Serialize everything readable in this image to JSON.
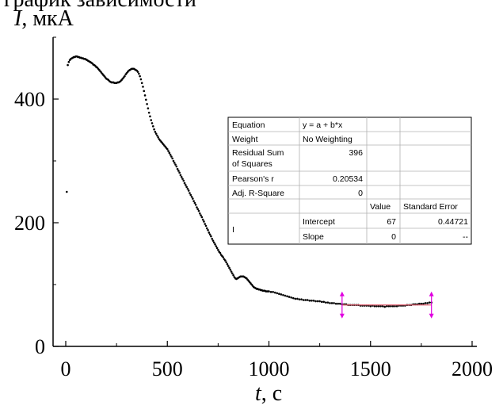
{
  "caption_fragment": "график зависимости",
  "chart_data": {
    "type": "scatter",
    "xlabel": {
      "symbol": "t",
      "unit": ", с"
    },
    "ylabel": {
      "symbol": "I",
      "unit": ", мкА"
    },
    "xlim": [
      0,
      2000
    ],
    "ylim": [
      0,
      500
    ],
    "x_ticks": [
      0,
      500,
      1000,
      1500,
      2000
    ],
    "y_ticks": [
      0,
      200,
      400
    ],
    "grid": false,
    "series": [
      {
        "color": "#000000",
        "marker": "dot",
        "points": [
          [
            5,
            250
          ],
          [
            10,
            455
          ],
          [
            15,
            460
          ],
          [
            20,
            463
          ],
          [
            25,
            465
          ],
          [
            30,
            466
          ],
          [
            35,
            467
          ],
          [
            40,
            468
          ],
          [
            45,
            468
          ],
          [
            50,
            469
          ],
          [
            55,
            469
          ],
          [
            60,
            468
          ],
          [
            65,
            468
          ],
          [
            70,
            467
          ],
          [
            75,
            467
          ],
          [
            80,
            466
          ],
          [
            85,
            466
          ],
          [
            90,
            465
          ],
          [
            95,
            465
          ],
          [
            100,
            464
          ],
          [
            105,
            463
          ],
          [
            110,
            462
          ],
          [
            115,
            461
          ],
          [
            120,
            460
          ],
          [
            125,
            459
          ],
          [
            130,
            458
          ],
          [
            135,
            456
          ],
          [
            140,
            455
          ],
          [
            145,
            454
          ],
          [
            150,
            452
          ],
          [
            155,
            451
          ],
          [
            160,
            449
          ],
          [
            165,
            447
          ],
          [
            170,
            445
          ],
          [
            175,
            443
          ],
          [
            180,
            441
          ],
          [
            185,
            439
          ],
          [
            190,
            437
          ],
          [
            195,
            435
          ],
          [
            200,
            433
          ],
          [
            205,
            432
          ],
          [
            210,
            431
          ],
          [
            215,
            429
          ],
          [
            220,
            428
          ],
          [
            225,
            427
          ],
          [
            230,
            427
          ],
          [
            235,
            427
          ],
          [
            240,
            426
          ],
          [
            245,
            426
          ],
          [
            250,
            426
          ],
          [
            255,
            427
          ],
          [
            260,
            427
          ],
          [
            265,
            428
          ],
          [
            270,
            429
          ],
          [
            275,
            431
          ],
          [
            280,
            433
          ],
          [
            285,
            435
          ],
          [
            290,
            437
          ],
          [
            295,
            440
          ],
          [
            300,
            442
          ],
          [
            305,
            444
          ],
          [
            310,
            446
          ],
          [
            315,
            447
          ],
          [
            320,
            448
          ],
          [
            325,
            449
          ],
          [
            330,
            449
          ],
          [
            335,
            449
          ],
          [
            340,
            448
          ],
          [
            345,
            447
          ],
          [
            350,
            446
          ],
          [
            355,
            444
          ],
          [
            360,
            441
          ],
          [
            365,
            437
          ],
          [
            370,
            432
          ],
          [
            375,
            426
          ],
          [
            380,
            420
          ],
          [
            385,
            413
          ],
          [
            390,
            406
          ],
          [
            395,
            399
          ],
          [
            400,
            392
          ],
          [
            405,
            385
          ],
          [
            410,
            378
          ],
          [
            415,
            372
          ],
          [
            420,
            366
          ],
          [
            425,
            361
          ],
          [
            430,
            356
          ],
          [
            435,
            351
          ],
          [
            440,
            347
          ],
          [
            445,
            344
          ],
          [
            450,
            341
          ],
          [
            455,
            338
          ],
          [
            460,
            335
          ],
          [
            465,
            333
          ],
          [
            470,
            331
          ],
          [
            475,
            329
          ],
          [
            480,
            327
          ],
          [
            485,
            325
          ],
          [
            490,
            323
          ],
          [
            495,
            321
          ],
          [
            500,
            319
          ],
          [
            505,
            316
          ],
          [
            510,
            313
          ],
          [
            515,
            310
          ],
          [
            520,
            307
          ],
          [
            525,
            304
          ],
          [
            530,
            300
          ],
          [
            535,
            297
          ],
          [
            540,
            294
          ],
          [
            545,
            291
          ],
          [
            550,
            287
          ],
          [
            555,
            284
          ],
          [
            560,
            281
          ],
          [
            565,
            277
          ],
          [
            570,
            274
          ],
          [
            575,
            271
          ],
          [
            580,
            268
          ],
          [
            585,
            264
          ],
          [
            590,
            261
          ],
          [
            595,
            258
          ],
          [
            600,
            255
          ],
          [
            605,
            252
          ],
          [
            610,
            248
          ],
          [
            615,
            245
          ],
          [
            620,
            242
          ],
          [
            625,
            239
          ],
          [
            630,
            235
          ],
          [
            635,
            232
          ],
          [
            640,
            229
          ],
          [
            645,
            225
          ],
          [
            650,
            222
          ],
          [
            655,
            219
          ],
          [
            660,
            215
          ],
          [
            665,
            212
          ],
          [
            670,
            209
          ],
          [
            675,
            205
          ],
          [
            680,
            202
          ],
          [
            685,
            198
          ],
          [
            690,
            195
          ],
          [
            695,
            191
          ],
          [
            700,
            188
          ],
          [
            705,
            184
          ],
          [
            710,
            181
          ],
          [
            715,
            178
          ],
          [
            720,
            174
          ],
          [
            725,
            171
          ],
          [
            730,
            168
          ],
          [
            735,
            165
          ],
          [
            740,
            162
          ],
          [
            745,
            159
          ],
          [
            750,
            156
          ],
          [
            755,
            153
          ],
          [
            760,
            151
          ],
          [
            765,
            148
          ],
          [
            770,
            146
          ],
          [
            775,
            144
          ],
          [
            780,
            141
          ],
          [
            785,
            139
          ],
          [
            790,
            136
          ],
          [
            795,
            133
          ],
          [
            800,
            130
          ],
          [
            805,
            127
          ],
          [
            810,
            124
          ],
          [
            815,
            121
          ],
          [
            820,
            118
          ],
          [
            825,
            115
          ],
          [
            830,
            112
          ],
          [
            835,
            110
          ],
          [
            840,
            109
          ],
          [
            845,
            110
          ],
          [
            850,
            111
          ],
          [
            855,
            112
          ],
          [
            860,
            113
          ],
          [
            865,
            113
          ],
          [
            870,
            113
          ],
          [
            875,
            113
          ],
          [
            880,
            112
          ],
          [
            885,
            111
          ],
          [
            890,
            110
          ],
          [
            895,
            108
          ],
          [
            900,
            106
          ],
          [
            905,
            104
          ],
          [
            910,
            102
          ],
          [
            915,
            100
          ],
          [
            920,
            98
          ],
          [
            925,
            96
          ],
          [
            930,
            95
          ],
          [
            935,
            94
          ],
          [
            940,
            93
          ],
          [
            945,
            93
          ],
          [
            950,
            92
          ],
          [
            955,
            92
          ],
          [
            960,
            91
          ],
          [
            965,
            91
          ],
          [
            970,
            90
          ],
          [
            975,
            90
          ],
          [
            980,
            90
          ],
          [
            985,
            89
          ],
          [
            990,
            89
          ],
          [
            995,
            89
          ],
          [
            1000,
            89
          ],
          [
            1010,
            88
          ],
          [
            1020,
            88
          ],
          [
            1030,
            87
          ],
          [
            1040,
            86
          ],
          [
            1050,
            85
          ],
          [
            1060,
            84
          ],
          [
            1070,
            83
          ],
          [
            1080,
            82
          ],
          [
            1090,
            81
          ],
          [
            1100,
            80
          ],
          [
            1110,
            79
          ],
          [
            1120,
            78
          ],
          [
            1130,
            77
          ],
          [
            1140,
            77
          ],
          [
            1150,
            76
          ],
          [
            1160,
            76
          ],
          [
            1170,
            75
          ],
          [
            1180,
            75
          ],
          [
            1190,
            75
          ],
          [
            1200,
            74
          ],
          [
            1210,
            74
          ],
          [
            1220,
            74
          ],
          [
            1230,
            73
          ],
          [
            1240,
            73
          ],
          [
            1250,
            73
          ],
          [
            1260,
            72
          ],
          [
            1270,
            72
          ],
          [
            1280,
            71
          ],
          [
            1290,
            71
          ],
          [
            1300,
            70
          ],
          [
            1310,
            70
          ],
          [
            1320,
            70
          ],
          [
            1330,
            69
          ],
          [
            1340,
            69
          ],
          [
            1350,
            69
          ],
          [
            1360,
            68
          ],
          [
            1370,
            68
          ],
          [
            1380,
            68
          ],
          [
            1390,
            67
          ],
          [
            1400,
            67
          ],
          [
            1410,
            67
          ],
          [
            1420,
            67
          ],
          [
            1430,
            67
          ],
          [
            1440,
            67
          ],
          [
            1450,
            66
          ],
          [
            1460,
            66
          ],
          [
            1470,
            66
          ],
          [
            1480,
            66
          ],
          [
            1490,
            66
          ],
          [
            1500,
            65
          ],
          [
            1510,
            66
          ],
          [
            1520,
            65
          ],
          [
            1530,
            65
          ],
          [
            1540,
            65
          ],
          [
            1550,
            65
          ],
          [
            1560,
            65
          ],
          [
            1570,
            64
          ],
          [
            1580,
            65
          ],
          [
            1590,
            65
          ],
          [
            1600,
            65
          ],
          [
            1610,
            65
          ],
          [
            1620,
            65
          ],
          [
            1630,
            65
          ],
          [
            1640,
            66
          ],
          [
            1650,
            66
          ],
          [
            1660,
            66
          ],
          [
            1670,
            66
          ],
          [
            1680,
            67
          ],
          [
            1690,
            67
          ],
          [
            1700,
            67
          ],
          [
            1710,
            68
          ],
          [
            1720,
            68
          ],
          [
            1730,
            68
          ],
          [
            1740,
            69
          ],
          [
            1750,
            69
          ],
          [
            1760,
            69
          ],
          [
            1770,
            70
          ],
          [
            1780,
            70
          ],
          [
            1790,
            71
          ],
          [
            1800,
            71
          ]
        ]
      }
    ],
    "fit_range": {
      "x": [
        1360,
        1800
      ],
      "y": 67,
      "line_color": "#e06070",
      "marker_color": "#e000e0"
    },
    "fit_table": {
      "rows": [
        {
          "label": "Equation",
          "value": "y = a + b*x"
        },
        {
          "label": "Weight",
          "value": "No Weighting"
        },
        {
          "label": "Residual Sum of Squares",
          "label_lines": [
            "Residual Sum",
            "of Squares"
          ],
          "value": "396"
        },
        {
          "label": "Pearson's r",
          "value": "0.20534"
        },
        {
          "label": "Adj. R-Square",
          "value": "0"
        }
      ],
      "param_headers": {
        "value": "Value",
        "error": "Standard Error"
      },
      "dependent": "I",
      "params": [
        {
          "name": "Intercept",
          "value": "67",
          "error": "0.44721"
        },
        {
          "name": "Slope",
          "value": "0",
          "error": "--"
        }
      ]
    }
  }
}
